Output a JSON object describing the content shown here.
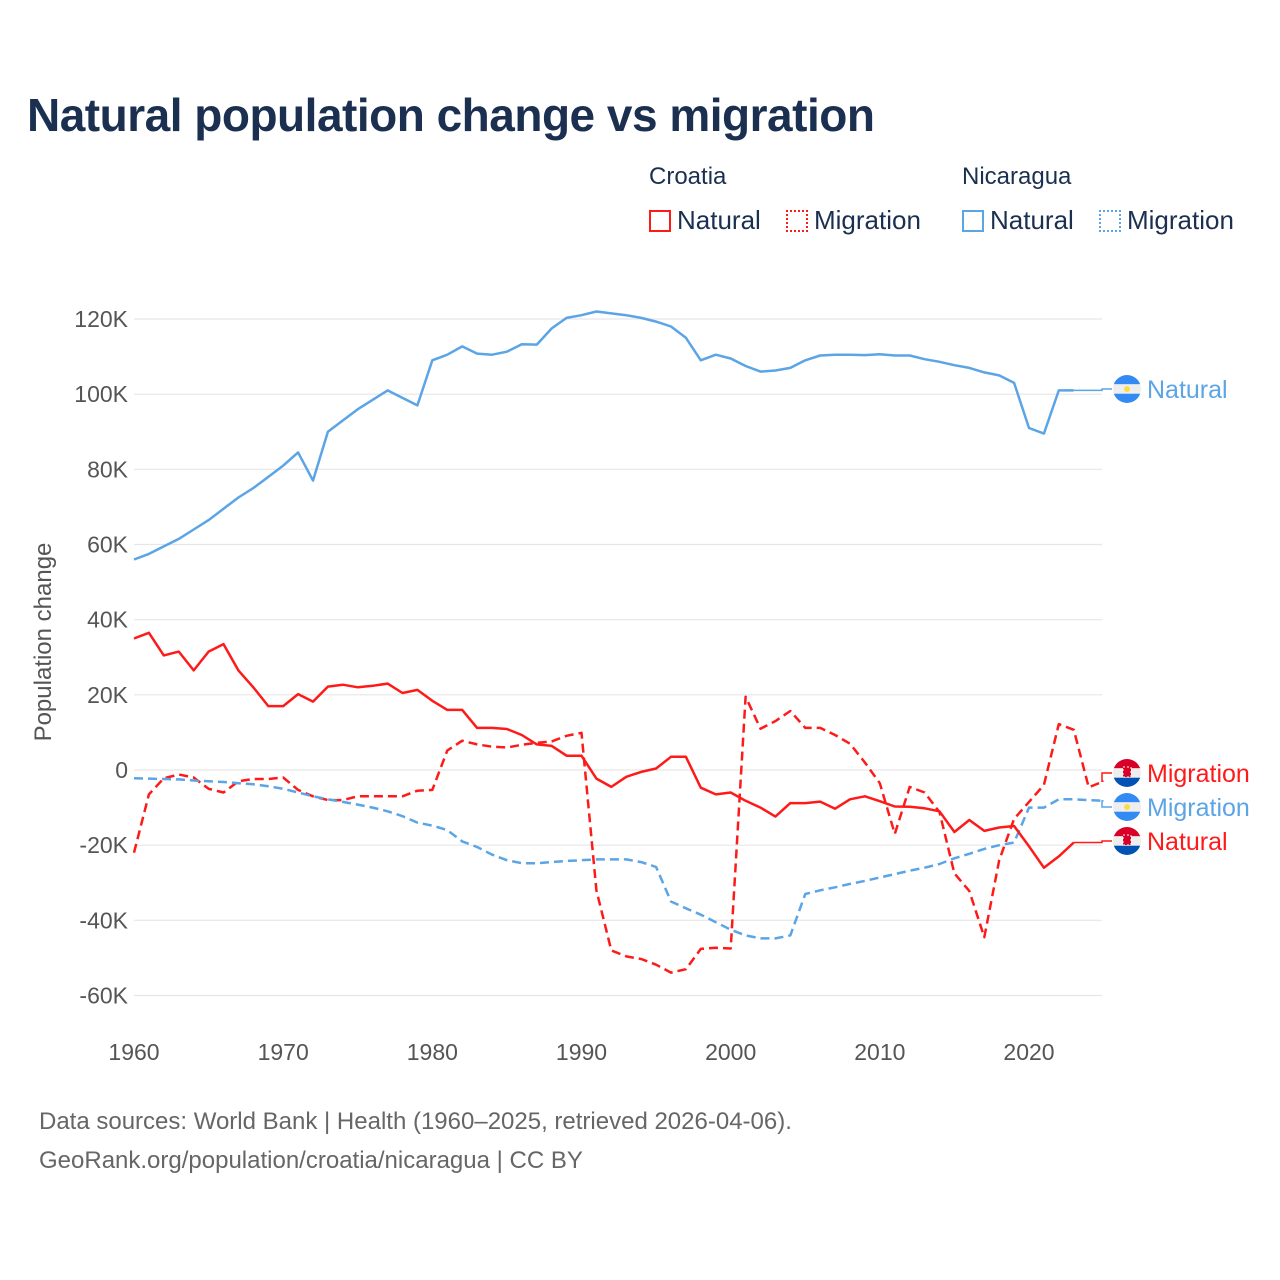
{
  "title": "Natural population change vs migration",
  "legend": {
    "groups": [
      {
        "country": "Croatia",
        "items": [
          "Natural",
          "Migration"
        ],
        "color": "#ff1a1a"
      },
      {
        "country": "Nicaragua",
        "items": [
          "Natural",
          "Migration"
        ],
        "color": "#5ba4e6"
      }
    ]
  },
  "source": {
    "line1": "Data sources: World Bank | Health (1960–2025, retrieved 2026-04-06).",
    "line2": "GeoRank.org/population/croatia/nicaragua | CC BY"
  },
  "chart_data": {
    "type": "line",
    "title": "Natural population change vs migration",
    "xlabel": "",
    "ylabel": "Population change",
    "xlim": [
      1960,
      2025
    ],
    "ylim": [
      -60000,
      120000
    ],
    "x_ticks": [
      "1960",
      "1970",
      "1980",
      "1990",
      "2000",
      "2010",
      "2020"
    ],
    "y_ticks": [
      {
        "value": 120000,
        "label": "120K"
      },
      {
        "value": 100000,
        "label": "100K"
      },
      {
        "value": 80000,
        "label": "80K"
      },
      {
        "value": 60000,
        "label": "60K"
      },
      {
        "value": 40000,
        "label": "40K"
      },
      {
        "value": 20000,
        "label": "20K"
      },
      {
        "value": 0,
        "label": "0"
      },
      {
        "value": -20000,
        "label": "-20K"
      },
      {
        "value": -40000,
        "label": "-40K"
      },
      {
        "value": -60000,
        "label": "-60K"
      }
    ],
    "grid": true,
    "series": [
      {
        "name": "Nicaragua Natural",
        "end_label": "Natural",
        "country": "nicaragua",
        "color": "#5ba4e6",
        "dash": false,
        "start_year": 1960,
        "values_k": [
          56,
          57.5,
          59.5,
          61.5,
          64,
          66.5,
          69.5,
          72.5,
          75,
          78,
          81,
          84.5,
          77,
          90,
          93,
          96,
          98.5,
          101,
          99,
          97,
          109,
          110.5,
          112.7,
          110.8,
          110.5,
          111.3,
          113.3,
          113.2,
          117.5,
          120.3,
          121,
          122,
          121.5,
          121,
          120.3,
          119.3,
          118,
          115,
          109,
          110.5,
          109.5,
          107.5,
          106,
          106.3,
          107,
          109,
          110.3,
          110.5,
          110.5,
          110.4,
          110.6,
          110.3,
          110.3,
          109.3,
          108.6,
          107.7,
          107,
          105.8,
          105,
          103,
          91,
          89.5,
          101,
          101
        ]
      },
      {
        "name": "Croatia Migration",
        "end_label": "Migration",
        "country": "croatia",
        "color": "#ff1a1a",
        "dash": true,
        "start_year": 1960,
        "values_k": [
          -22,
          -6.5,
          -2.2,
          -1.2,
          -2,
          -5,
          -6,
          -3,
          -2.4,
          -2.4,
          -2,
          -5.3,
          -7,
          -8,
          -8,
          -7,
          -7,
          -7,
          -7,
          -5.5,
          -5.3,
          5.2,
          7.8,
          6.8,
          6.2,
          6,
          6.7,
          7.2,
          7.6,
          9.1,
          9.9,
          -32,
          -48,
          -49.6,
          -50.3,
          -51.8,
          -53.9,
          -53,
          -47.6,
          -47.3,
          -47.5,
          19.5,
          11,
          13,
          15.7,
          11.2,
          11.2,
          9.3,
          7,
          2,
          -3.5,
          -17,
          -4.5,
          -6,
          -11.2,
          -27.5,
          -32.2,
          -44.5,
          -24,
          -13,
          -8.5,
          -4,
          12.2,
          10.7,
          -4.6,
          -3
        ]
      },
      {
        "name": "Nicaragua Migration",
        "end_label": "Migration",
        "country": "nicaragua",
        "color": "#5ba4e6",
        "dash": true,
        "start_year": 1960,
        "values_k": [
          -2.2,
          -2.3,
          -2.4,
          -2.5,
          -2.8,
          -3,
          -3.2,
          -3.5,
          -3.8,
          -4.3,
          -5,
          -6,
          -7,
          -7.8,
          -8.5,
          -9.2,
          -10,
          -11,
          -12.3,
          -14,
          -14.8,
          -16,
          -19,
          -20.5,
          -22.5,
          -24,
          -24.8,
          -24.8,
          -24.5,
          -24.2,
          -24,
          -23.8,
          -23.8,
          -23.8,
          -24.5,
          -25.8,
          -35,
          -36.8,
          -38.5,
          -40.5,
          -42.5,
          -44,
          -44.8,
          -44.8,
          -44,
          -33,
          -32,
          -31.2,
          -30.3,
          -29.5,
          -28.6,
          -27.7,
          -26.8,
          -26,
          -25,
          -23.5,
          -22.3,
          -21,
          -20,
          -19.3,
          -10,
          -10,
          -7.8,
          -7.8,
          -8,
          -8.2
        ]
      },
      {
        "name": "Croatia Natural",
        "end_label": "Natural",
        "country": "croatia",
        "color": "#ff1a1a",
        "dash": false,
        "start_year": 1960,
        "values_k": [
          35,
          36.5,
          30.5,
          31.5,
          26.5,
          31.5,
          33.5,
          26.5,
          22,
          17,
          17,
          20.2,
          18.2,
          22.2,
          22.7,
          22,
          22.4,
          23,
          20.5,
          21.3,
          18.4,
          16,
          16,
          11.2,
          11.2,
          10.9,
          9.3,
          6.8,
          6.4,
          3.8,
          3.8,
          -2.3,
          -4.5,
          -1.8,
          -0.5,
          0.4,
          3.5,
          3.5,
          -4.7,
          -6.5,
          -6,
          -8.2,
          -10,
          -12.4,
          -8.8,
          -8.8,
          -8.4,
          -10.3,
          -7.8,
          -7,
          -8.3,
          -9.7,
          -9.8,
          -10.2,
          -11,
          -16.5,
          -13.3,
          -16.2,
          -15.3,
          -14.9,
          -20.3,
          -26,
          -23,
          -19.3
        ]
      }
    ],
    "end_labels_order": [
      0,
      1,
      2,
      3
    ]
  }
}
